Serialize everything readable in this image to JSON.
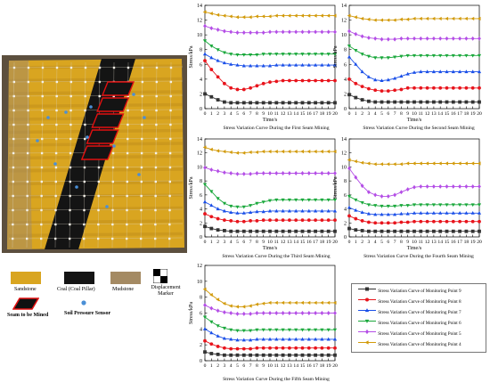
{
  "colors": {
    "sandstone": "#d9a520",
    "coal": "#141414",
    "mudstone": "#a48a63",
    "seam_border": "#e01010",
    "sensor": "#4a8fd6",
    "series": [
      "#333333",
      "#e8141c",
      "#1a4fe8",
      "#1aa83c",
      "#b44ee6",
      "#d29a0a"
    ]
  },
  "photo_legend": {
    "sandstone": "Sandstone",
    "coal": "Coal (Coal Pillar)",
    "mudstone": "Mudstone",
    "displacement": "Displacement Marker",
    "seam": "Seam to be Mined",
    "sensor": "Soil Pressure Sensor"
  },
  "series_legend": [
    {
      "label": "Stress Variation Curve of Monitoring Point 9",
      "marker": "square"
    },
    {
      "label": "Stress Variation Curve of Monitoring Point 8",
      "marker": "circle"
    },
    {
      "label": "Stress Variation Curve of Monitoring Point 7",
      "marker": "triangle-up"
    },
    {
      "label": "Stress Variation Curve of Monitoring Point 6",
      "marker": "triangle-down"
    },
    {
      "label": "Stress Variation Curve of Monitoring Point 5",
      "marker": "diamond"
    },
    {
      "label": "Stress Variation Curve of Monitoring Point 4",
      "marker": "triangle-left"
    }
  ],
  "chart_data": [
    {
      "type": "line",
      "title": "Stress Variation Curve During the First Seam Mining",
      "xlabel": "Time/s",
      "ylabel": "Stress/kPa",
      "xlim": [
        0,
        20
      ],
      "ylim": [
        0,
        14
      ],
      "yticks": [
        0,
        2,
        4,
        6,
        8,
        10,
        12,
        14
      ],
      "x": [
        0,
        1,
        2,
        3,
        4,
        5,
        6,
        7,
        8,
        9,
        10,
        11,
        12,
        13,
        14,
        15,
        16,
        17,
        18,
        19,
        20
      ],
      "series": [
        {
          "values": [
            2.0,
            1.6,
            1.2,
            0.9,
            0.8,
            0.8,
            0.8,
            0.8,
            0.8,
            0.8,
            0.8,
            0.8,
            0.8,
            0.8,
            0.8,
            0.8,
            0.8,
            0.8,
            0.8,
            0.8,
            0.8
          ]
        },
        {
          "values": [
            6.5,
            5.3,
            4.3,
            3.4,
            2.8,
            2.6,
            2.6,
            2.8,
            3.1,
            3.4,
            3.6,
            3.7,
            3.8,
            3.8,
            3.8,
            3.8,
            3.8,
            3.8,
            3.8,
            3.8,
            3.8
          ]
        },
        {
          "values": [
            7.4,
            6.9,
            6.5,
            6.2,
            6.0,
            5.9,
            5.8,
            5.8,
            5.8,
            5.8,
            5.8,
            5.9,
            5.9,
            5.9,
            5.9,
            5.9,
            5.9,
            5.9,
            5.9,
            5.9,
            5.9
          ]
        },
        {
          "values": [
            9.2,
            8.5,
            8.0,
            7.6,
            7.4,
            7.3,
            7.3,
            7.3,
            7.3,
            7.4,
            7.4,
            7.4,
            7.4,
            7.4,
            7.4,
            7.4,
            7.4,
            7.4,
            7.4,
            7.4,
            7.4
          ]
        },
        {
          "values": [
            11.2,
            10.9,
            10.7,
            10.5,
            10.4,
            10.3,
            10.3,
            10.3,
            10.3,
            10.3,
            10.4,
            10.4,
            10.4,
            10.4,
            10.4,
            10.4,
            10.4,
            10.4,
            10.4,
            10.4,
            10.4
          ]
        },
        {
          "values": [
            13.1,
            12.9,
            12.7,
            12.6,
            12.5,
            12.4,
            12.4,
            12.4,
            12.5,
            12.5,
            12.5,
            12.6,
            12.6,
            12.6,
            12.6,
            12.6,
            12.6,
            12.6,
            12.6,
            12.6,
            12.6
          ]
        }
      ]
    },
    {
      "type": "line",
      "title": "Stress Variation Curve During the Second Seam Mining",
      "xlabel": "Time/s",
      "ylabel": "Stress/kPa",
      "xlim": [
        0,
        20
      ],
      "ylim": [
        0,
        14
      ],
      "yticks": [
        0,
        2,
        4,
        6,
        8,
        10,
        12,
        14
      ],
      "x": [
        0,
        1,
        2,
        3,
        4,
        5,
        6,
        7,
        8,
        9,
        10,
        11,
        12,
        13,
        14,
        15,
        16,
        17,
        18,
        19,
        20
      ],
      "series": [
        {
          "values": [
            1.9,
            1.5,
            1.2,
            1.0,
            0.9,
            0.9,
            0.9,
            0.9,
            0.9,
            0.9,
            0.9,
            0.9,
            0.9,
            0.9,
            0.9,
            0.9,
            0.9,
            0.9,
            0.9,
            0.9,
            0.9
          ]
        },
        {
          "values": [
            4.0,
            3.4,
            3.0,
            2.7,
            2.5,
            2.4,
            2.4,
            2.5,
            2.6,
            2.8,
            2.8,
            2.8,
            2.8,
            2.8,
            2.8,
            2.8,
            2.8,
            2.8,
            2.8,
            2.8,
            2.8
          ]
        },
        {
          "values": [
            7.0,
            6.0,
            5.0,
            4.3,
            3.9,
            3.8,
            3.9,
            4.1,
            4.4,
            4.7,
            4.9,
            5.0,
            5.0,
            5.0,
            5.0,
            5.0,
            5.0,
            5.0,
            5.0,
            5.0,
            5.0
          ]
        },
        {
          "values": [
            8.5,
            7.9,
            7.4,
            7.1,
            6.9,
            6.9,
            6.9,
            7.0,
            7.1,
            7.2,
            7.2,
            7.2,
            7.2,
            7.2,
            7.2,
            7.2,
            7.2,
            7.2,
            7.2,
            7.2,
            7.2
          ]
        },
        {
          "values": [
            10.5,
            10.1,
            9.8,
            9.6,
            9.5,
            9.4,
            9.4,
            9.4,
            9.5,
            9.5,
            9.5,
            9.5,
            9.5,
            9.5,
            9.5,
            9.5,
            9.5,
            9.5,
            9.5,
            9.5,
            9.5
          ]
        },
        {
          "values": [
            12.6,
            12.4,
            12.2,
            12.1,
            12.0,
            12.0,
            12.0,
            12.0,
            12.1,
            12.1,
            12.2,
            12.2,
            12.2,
            12.2,
            12.2,
            12.2,
            12.2,
            12.2,
            12.2,
            12.2,
            12.2
          ]
        }
      ]
    },
    {
      "type": "line",
      "title": "Stress Variation Curve During the Third Seam Mining",
      "xlabel": "Time/s",
      "ylabel": "Stress/kPa",
      "xlim": [
        0,
        20
      ],
      "ylim": [
        0,
        14
      ],
      "yticks": [
        0,
        2,
        4,
        6,
        8,
        10,
        12,
        14
      ],
      "x": [
        0,
        1,
        2,
        3,
        4,
        5,
        6,
        7,
        8,
        9,
        10,
        11,
        12,
        13,
        14,
        15,
        16,
        17,
        18,
        19,
        20
      ],
      "series": [
        {
          "values": [
            1.5,
            1.2,
            1.0,
            0.9,
            0.8,
            0.8,
            0.8,
            0.8,
            0.8,
            0.8,
            0.8,
            0.8,
            0.8,
            0.8,
            0.8,
            0.8,
            0.8,
            0.8,
            0.8,
            0.8,
            0.8
          ]
        },
        {
          "values": [
            3.3,
            2.9,
            2.6,
            2.4,
            2.3,
            2.2,
            2.2,
            2.3,
            2.3,
            2.4,
            2.4,
            2.4,
            2.4,
            2.4,
            2.4,
            2.4,
            2.4,
            2.4,
            2.4,
            2.4,
            2.4
          ]
        },
        {
          "values": [
            5.0,
            4.5,
            4.0,
            3.7,
            3.5,
            3.4,
            3.4,
            3.5,
            3.6,
            3.6,
            3.7,
            3.7,
            3.7,
            3.7,
            3.7,
            3.7,
            3.7,
            3.7,
            3.7,
            3.7,
            3.7
          ]
        },
        {
          "values": [
            7.5,
            6.5,
            5.5,
            4.8,
            4.4,
            4.3,
            4.3,
            4.5,
            4.8,
            5.0,
            5.2,
            5.3,
            5.3,
            5.3,
            5.3,
            5.3,
            5.3,
            5.3,
            5.3,
            5.3,
            5.3
          ]
        },
        {
          "values": [
            9.9,
            9.6,
            9.4,
            9.2,
            9.1,
            9.0,
            9.0,
            9.0,
            9.1,
            9.1,
            9.1,
            9.1,
            9.1,
            9.1,
            9.1,
            9.1,
            9.1,
            9.1,
            9.1,
            9.1,
            9.1
          ]
        },
        {
          "values": [
            12.8,
            12.5,
            12.3,
            12.2,
            12.1,
            12.0,
            12.0,
            12.1,
            12.1,
            12.2,
            12.2,
            12.2,
            12.2,
            12.2,
            12.2,
            12.2,
            12.2,
            12.2,
            12.2,
            12.2,
            12.2
          ]
        }
      ]
    },
    {
      "type": "line",
      "title": "Stress Variation Curve During the Fourth Seam Mining",
      "xlabel": "Time/s",
      "ylabel": "Stress/kPa",
      "xlim": [
        0,
        20
      ],
      "ylim": [
        0,
        14
      ],
      "yticks": [
        0,
        2,
        4,
        6,
        8,
        10,
        12,
        14
      ],
      "x": [
        0,
        1,
        2,
        3,
        4,
        5,
        6,
        7,
        8,
        9,
        10,
        11,
        12,
        13,
        14,
        15,
        16,
        17,
        18,
        19,
        20
      ],
      "series": [
        {
          "values": [
            1.2,
            1.0,
            0.9,
            0.8,
            0.8,
            0.8,
            0.8,
            0.8,
            0.8,
            0.8,
            0.8,
            0.8,
            0.8,
            0.8,
            0.8,
            0.8,
            0.8,
            0.8,
            0.8,
            0.8,
            0.8
          ]
        },
        {
          "values": [
            3.0,
            2.6,
            2.3,
            2.1,
            2.0,
            2.0,
            2.0,
            2.0,
            2.1,
            2.1,
            2.2,
            2.2,
            2.2,
            2.2,
            2.2,
            2.2,
            2.2,
            2.2,
            2.2,
            2.2,
            2.2
          ]
        },
        {
          "values": [
            4.2,
            3.8,
            3.5,
            3.3,
            3.2,
            3.2,
            3.2,
            3.2,
            3.3,
            3.3,
            3.4,
            3.4,
            3.4,
            3.4,
            3.4,
            3.4,
            3.4,
            3.4,
            3.4,
            3.4,
            3.4
          ]
        },
        {
          "values": [
            5.8,
            5.3,
            4.9,
            4.6,
            4.5,
            4.4,
            4.4,
            4.4,
            4.5,
            4.5,
            4.6,
            4.6,
            4.6,
            4.6,
            4.6,
            4.6,
            4.6,
            4.6,
            4.6,
            4.6,
            4.6
          ]
        },
        {
          "values": [
            9.8,
            8.5,
            7.3,
            6.4,
            6.0,
            5.8,
            5.8,
            6.0,
            6.4,
            6.8,
            7.1,
            7.2,
            7.2,
            7.2,
            7.2,
            7.2,
            7.2,
            7.2,
            7.2,
            7.2,
            7.2
          ]
        },
        {
          "values": [
            11.0,
            10.8,
            10.6,
            10.5,
            10.4,
            10.4,
            10.4,
            10.4,
            10.4,
            10.5,
            10.5,
            10.5,
            10.5,
            10.5,
            10.5,
            10.5,
            10.5,
            10.5,
            10.5,
            10.5,
            10.5
          ]
        }
      ]
    },
    {
      "type": "line",
      "title": "Stress Variation Curve During the Fifth Seam Mining",
      "xlabel": "",
      "ylabel": "Stress/kPa",
      "xlim": [
        0,
        20
      ],
      "ylim": [
        0,
        12
      ],
      "yticks": [
        0,
        2,
        4,
        6,
        8,
        10,
        12
      ],
      "x": [
        0,
        1,
        2,
        3,
        4,
        5,
        6,
        7,
        8,
        9,
        10,
        11,
        12,
        13,
        14,
        15,
        16,
        17,
        18,
        19,
        20
      ],
      "series": [
        {
          "values": [
            1.1,
            0.9,
            0.8,
            0.7,
            0.7,
            0.7,
            0.7,
            0.7,
            0.7,
            0.7,
            0.7,
            0.7,
            0.7,
            0.7,
            0.7,
            0.7,
            0.7,
            0.7,
            0.7,
            0.7,
            0.7
          ]
        },
        {
          "values": [
            2.5,
            2.1,
            1.8,
            1.6,
            1.5,
            1.5,
            1.5,
            1.5,
            1.6,
            1.6,
            1.6,
            1.6,
            1.6,
            1.6,
            1.6,
            1.6,
            1.6,
            1.6,
            1.6,
            1.6,
            1.6
          ]
        },
        {
          "values": [
            4.0,
            3.5,
            3.1,
            2.8,
            2.7,
            2.6,
            2.6,
            2.6,
            2.7,
            2.7,
            2.7,
            2.7,
            2.7,
            2.7,
            2.7,
            2.7,
            2.7,
            2.7,
            2.7,
            2.7,
            2.7
          ]
        },
        {
          "values": [
            5.5,
            4.9,
            4.4,
            4.1,
            3.9,
            3.8,
            3.8,
            3.8,
            3.9,
            3.9,
            3.9,
            3.9,
            3.9,
            3.9,
            3.9,
            3.9,
            3.9,
            3.9,
            3.9,
            3.9,
            3.9
          ]
        },
        {
          "values": [
            7.0,
            6.6,
            6.3,
            6.1,
            6.0,
            5.9,
            5.9,
            5.9,
            6.0,
            6.0,
            6.0,
            6.0,
            6.0,
            6.0,
            6.0,
            6.0,
            6.0,
            6.0,
            6.0,
            6.0,
            6.0
          ]
        },
        {
          "values": [
            9.0,
            8.3,
            7.7,
            7.2,
            6.9,
            6.8,
            6.8,
            6.9,
            7.1,
            7.2,
            7.3,
            7.3,
            7.3,
            7.3,
            7.3,
            7.3,
            7.3,
            7.3,
            7.3,
            7.3,
            7.3
          ]
        }
      ]
    }
  ]
}
